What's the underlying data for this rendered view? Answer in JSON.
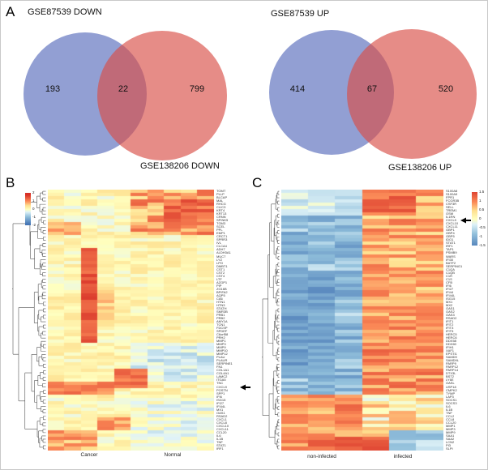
{
  "panels": {
    "a_label": "A",
    "b_label": "B",
    "c_label": "C"
  },
  "chart_data": [
    {
      "type": "venn",
      "direction": "down",
      "set1_label": "GSE87539 DOWN",
      "set2_label": "GSE138206 DOWN",
      "set1_unique": "193",
      "intersection": "22",
      "set2_unique": "799",
      "set1_color": "#4a5fb5",
      "set2_color": "#d94f46"
    },
    {
      "type": "venn",
      "direction": "up",
      "set1_label": "GSE87539 UP",
      "set2_label": "GSE138206 UP",
      "set1_unique": "414",
      "intersection": "67",
      "set2_unique": "520",
      "set1_color": "#4a5fb5",
      "set2_color": "#d94f46"
    },
    {
      "type": "heatmap",
      "panel": "B",
      "n_rows": 80,
      "n_cols": 10,
      "groups": [
        {
          "label": "Cancer",
          "cols": [
            0,
            4
          ]
        },
        {
          "label": "Normal",
          "cols": [
            5,
            9
          ]
        }
      ],
      "legend_ticks": [
        "2",
        "1",
        "0",
        "-1",
        "-2"
      ],
      "value_range": [
        -2,
        2
      ],
      "arrow_row_index": 60,
      "default_base": 0.15,
      "default_noise": 0.3,
      "blocks": [
        {
          "r0": 0,
          "r1": 13,
          "c0": 0,
          "c1": 4,
          "base": 0.1,
          "noise": 0.35
        },
        {
          "r0": 0,
          "r1": 13,
          "c0": 5,
          "c1": 9,
          "base": 0.85,
          "noise": 0.55
        },
        {
          "r0": 3,
          "r1": 9,
          "c0": 7,
          "c1": 9,
          "base": 1.3,
          "noise": 0.35
        },
        {
          "r0": 10,
          "r1": 13,
          "c0": 0,
          "c1": 1,
          "base": 0.85,
          "noise": 0.3
        },
        {
          "r0": 18,
          "r1": 46,
          "c0": 2,
          "c1": 2,
          "base": 1.45,
          "noise": 0.25
        },
        {
          "r0": 30,
          "r1": 40,
          "c0": 3,
          "c1": 3,
          "base": 0.55,
          "noise": 0.3
        },
        {
          "r0": 47,
          "r1": 58,
          "c0": 5,
          "c1": 9,
          "base": -0.35,
          "noise": 0.35
        },
        {
          "r0": 55,
          "r1": 60,
          "c0": 4,
          "c1": 5,
          "base": 1.2,
          "noise": 0.3
        },
        {
          "r0": 59,
          "r1": 62,
          "c0": 0,
          "c1": 3,
          "base": 1.15,
          "noise": 0.3
        },
        {
          "r0": 64,
          "r1": 79,
          "c0": 0,
          "c1": 4,
          "base": 0.1,
          "noise": 0.3
        },
        {
          "r0": 64,
          "r1": 79,
          "c0": 5,
          "c1": 9,
          "base": -0.15,
          "noise": 0.35
        },
        {
          "r0": 70,
          "r1": 73,
          "c0": 3,
          "c1": 4,
          "base": 0.9,
          "noise": 0.3
        },
        {
          "r0": 74,
          "r1": 79,
          "c0": 0,
          "c1": 2,
          "base": 0.8,
          "noise": 0.4
        }
      ],
      "row_labels": [
        "TOMT",
        "PLLP",
        "BLCAP",
        "MAL",
        "RHCG",
        "CLIC3",
        "KRT4",
        "KRT13",
        "CRNN",
        "SPINK5",
        "TGM3",
        "SCEL",
        "PPL",
        "EMP1",
        "CRCT1",
        "SPRR3",
        "IVL",
        "CLCA4",
        "ADH7",
        "ALDH3A1",
        "MUC7",
        "LYZ",
        "LPO",
        "DMBT1",
        "CST1",
        "CST2",
        "CST4",
        "LTF",
        "AZGP1",
        "PIP",
        "ZG16B",
        "BPIFA2",
        "AQP5",
        "CA6",
        "HTN1",
        "HTN3",
        "STATH",
        "SMR3B",
        "PRB1",
        "PRB2",
        "AMY1A",
        "TCN1",
        "FDCSP",
        "SPDEF",
        "C6orf58",
        "PRH2",
        "MMP1",
        "MMP3",
        "MMP9",
        "MMP10",
        "MMP12",
        "PLAU",
        "PLAUR",
        "SERPINE1",
        "FN1",
        "COL1A1",
        "COL4A1",
        "LAMC2",
        "ITGA5",
        "TNC",
        "CXCL9",
        "POSTN",
        "SPP1",
        "IFI6",
        "ISG15",
        "IFI27",
        "IFI44L",
        "MX1",
        "OAS1",
        "RSAD2",
        "CXCL1",
        "CXCL8",
        "CXCL10",
        "CXCL11",
        "CCL20",
        "IL6",
        "IL1B",
        "TNF",
        "STAT1",
        "IRF1"
      ]
    },
    {
      "type": "heatmap",
      "panel": "C",
      "n_rows": 80,
      "n_cols": 6,
      "groups": [
        {
          "label": "non-infected",
          "cols": [
            0,
            2
          ]
        },
        {
          "label": "infected",
          "cols": [
            3,
            5
          ]
        }
      ],
      "legend_ticks": [
        "1.5",
        "1",
        "0.5",
        "0",
        "-0.5",
        "-1",
        "-1.5"
      ],
      "value_range": [
        -1.6,
        1.6
      ],
      "arrow_row_index": 9,
      "default_base": 0.2,
      "default_noise": 0.3,
      "blocks": [
        {
          "r0": 0,
          "r1": 62,
          "c0": 0,
          "c1": 2,
          "base": -0.9,
          "noise": 0.45
        },
        {
          "r0": 0,
          "r1": 62,
          "c0": 3,
          "c1": 5,
          "base": 0.8,
          "noise": 0.45
        },
        {
          "r0": 0,
          "r1": 7,
          "c0": 0,
          "c1": 2,
          "base": -0.4,
          "noise": 0.3
        },
        {
          "r0": 0,
          "r1": 7,
          "c0": 3,
          "c1": 4,
          "base": 1.3,
          "noise": 0.3
        },
        {
          "r0": 25,
          "r1": 55,
          "c0": 0,
          "c1": 1,
          "base": -1.25,
          "noise": 0.3
        },
        {
          "r0": 40,
          "r1": 62,
          "c0": 3,
          "c1": 5,
          "base": 1.0,
          "noise": 0.4
        },
        {
          "r0": 63,
          "r1": 79,
          "c0": 0,
          "c1": 2,
          "base": 0.95,
          "noise": 0.4
        },
        {
          "r0": 63,
          "r1": 79,
          "c0": 3,
          "c1": 5,
          "base": 0.3,
          "noise": 0.55
        },
        {
          "r0": 74,
          "r1": 79,
          "c0": 4,
          "c1": 5,
          "base": -0.7,
          "noise": 0.4
        },
        {
          "r0": 76,
          "r1": 79,
          "c0": 1,
          "c1": 3,
          "base": 1.35,
          "noise": 0.25
        }
      ],
      "row_labels": [
        "S100A8",
        "S100A9",
        "FPR1",
        "FCGR3B",
        "CSF3R",
        "SELL",
        "TREM1",
        "OSM",
        "IL1RN",
        "CXCL9",
        "CXCL10",
        "CXCL11",
        "GBP1",
        "GBP4",
        "GBP5",
        "IDO1",
        "STAT1",
        "IRF1",
        "TAP1",
        "PSMB9",
        "WARS",
        "IFI30",
        "BATF2",
        "SERPING1",
        "C1QA",
        "C1QB",
        "C1R",
        "C1S",
        "CFB",
        "IFI6",
        "IFI27",
        "IFI44",
        "IFI44L",
        "ISG15",
        "MX1",
        "MX2",
        "OAS1",
        "OAS2",
        "OAS3",
        "RSAD2",
        "IFIT1",
        "IFIT2",
        "IFIT3",
        "IFIT5",
        "HERC5",
        "HERC6",
        "DDX58",
        "DDX60",
        "IFIH1",
        "XAF1",
        "EPSTI1",
        "SAMD9",
        "SAMD9L",
        "PARP9",
        "PARP12",
        "PARP14",
        "DTX3L",
        "BST2",
        "LY6E",
        "OASL",
        "USP18",
        "CMPK2",
        "TYMP",
        "LAP3",
        "SOCS1",
        "SOCS3",
        "IL6",
        "IL1B",
        "TNF",
        "CCL2",
        "CCL8",
        "CCL20",
        "MMP1",
        "MMP3",
        "MMP9",
        "SAA1",
        "SAA2",
        "LCN2",
        "PI3",
        "SLPI"
      ]
    }
  ]
}
